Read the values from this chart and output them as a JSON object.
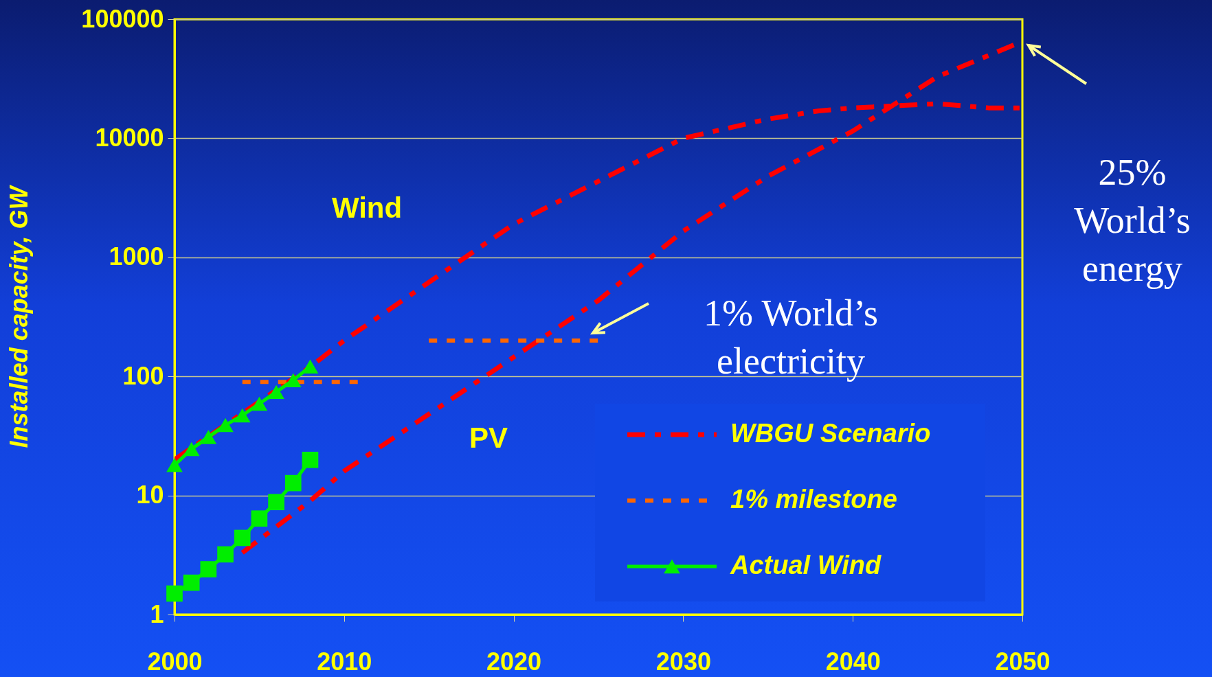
{
  "chart_data": {
    "type": "line",
    "ylabel": "Installed capacity, GW",
    "log": "y",
    "grid": "y",
    "legend": "bottom right",
    "xlim": [
      2000,
      2050
    ],
    "xticks": [
      2000,
      2010,
      2020,
      2030,
      2040,
      2050
    ],
    "ylim": [
      1,
      100000
    ],
    "yticks": [
      1,
      10,
      100,
      1000,
      10000,
      100000
    ],
    "series": [
      {
        "name": "WBGU Scenario",
        "color": "#ff0000",
        "line_style": "dashed",
        "x": [
          2000,
          2008,
          2010,
          2020,
          2030,
          2035,
          2038,
          2040,
          2045,
          2048,
          2050
        ],
        "values": [
          20,
          120,
          200,
          1900,
          10000,
          14500,
          17000,
          18000,
          19500,
          18000,
          18000
        ]
      },
      {
        "color": "#ff0000",
        "line_style": "dashed",
        "x": [
          2004,
          2008,
          2010,
          2020,
          2025,
          2030,
          2035,
          2040,
          2045,
          2050
        ],
        "values": [
          3.3,
          9,
          16,
          145,
          435,
          1660,
          4800,
          11500,
          33000,
          65000
        ]
      },
      {
        "name": "1% milestone",
        "color": "#ff6600",
        "line_style": "dotted",
        "x": [
          2004,
          2011
        ],
        "values": [
          90,
          90
        ]
      },
      {
        "color": "#ff6600",
        "line_style": "dotted",
        "x": [
          2015,
          2025
        ],
        "values": [
          200,
          200
        ]
      },
      {
        "name": "Actual Wind",
        "color": "#00ee00",
        "line_style": "solid",
        "marker": "triangle",
        "x": [
          2000,
          2001,
          2002,
          2003,
          2004,
          2005,
          2006,
          2007,
          2008
        ],
        "values": [
          18,
          24.5,
          31,
          39,
          47,
          59,
          74,
          93,
          121
        ]
      },
      {
        "color": "#00ee00",
        "line_style": "solid",
        "marker": "square",
        "x": [
          2000,
          2001,
          2002,
          2003,
          2004,
          2005,
          2006,
          2007,
          2008
        ],
        "values": [
          1.5,
          1.85,
          2.4,
          3.2,
          4.4,
          6.4,
          8.8,
          12.7,
          19.9
        ]
      }
    ],
    "annotations": [
      "1% World’s\nelectricity",
      "25%\nWorld’s\nenergy",
      "Wind",
      "PV"
    ]
  }
}
